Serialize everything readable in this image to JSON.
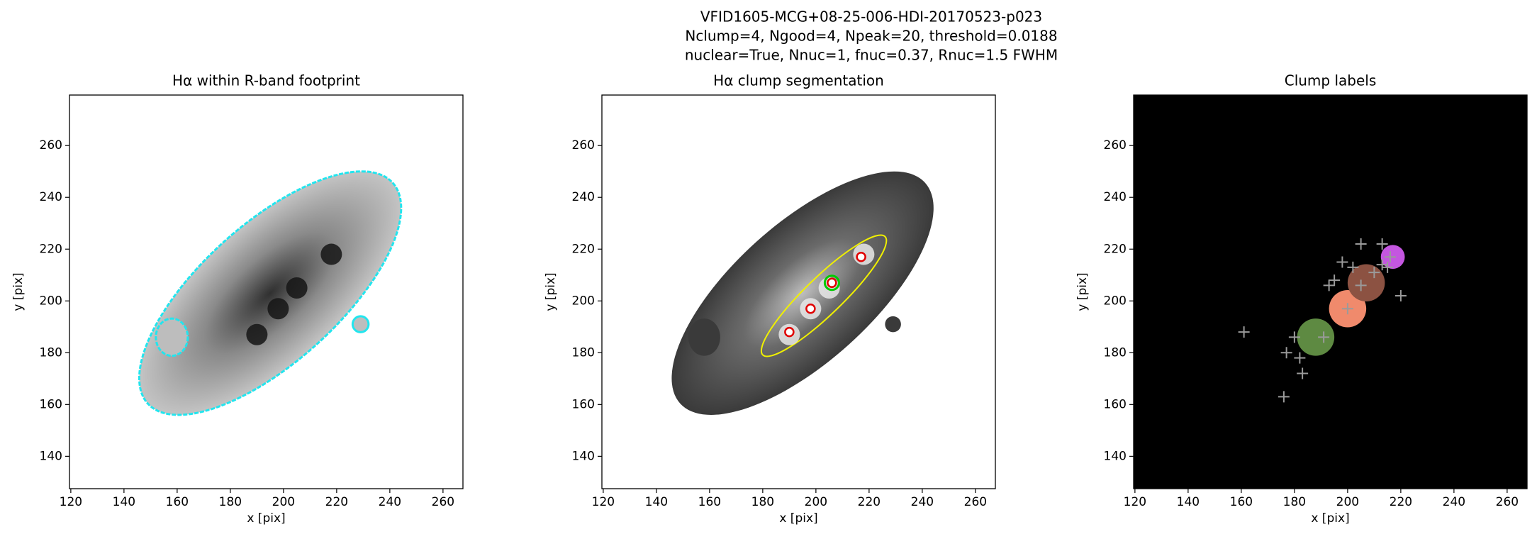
{
  "suptitle": [
    "VFID1605-MCG+08-25-006-HDI-20170523-p023",
    "Nclump=4, Ngood=4, Npeak=20, threshold=0.0188",
    "nuclear=True, Nnuc=1, fnuc=0.37, Rnuc=1.5 FWHM"
  ],
  "chart_data": [
    {
      "type": "image",
      "title": "Hα within R-band footprint",
      "xlabel": "x [pix]",
      "ylabel": "y [pix]",
      "xlim": [
        119.5,
        267.5
      ],
      "ylim": [
        127.5,
        279.5
      ],
      "xticks": [
        120,
        140,
        160,
        180,
        200,
        220,
        240,
        260
      ],
      "yticks": [
        140,
        160,
        180,
        200,
        220,
        240,
        260
      ],
      "background": "#ffffff",
      "contour_color": "#22e5ee"
    },
    {
      "type": "image",
      "title": "Hα clump segmentation",
      "xlabel": "x [pix]",
      "ylabel": "y [pix]",
      "xlim": [
        119.5,
        267.5
      ],
      "ylim": [
        127.5,
        279.5
      ],
      "xticks": [
        120,
        140,
        160,
        180,
        200,
        220,
        240,
        260
      ],
      "yticks": [
        140,
        160,
        180,
        200,
        220,
        240,
        260
      ],
      "background": "#ffffff",
      "contour_color": "#f0f000",
      "markers": {
        "x": [
          190,
          198,
          206,
          217
        ],
        "y": [
          188,
          197,
          207,
          217
        ],
        "color": "#e00000"
      },
      "nucleus": {
        "x": 206,
        "y": 207,
        "color": "#00cc00"
      }
    },
    {
      "type": "image",
      "title": "Clump labels",
      "xlabel": "x [pix]",
      "ylabel": "y [pix]",
      "xlim": [
        119.5,
        267.5
      ],
      "ylim": [
        127.5,
        279.5
      ],
      "xticks": [
        120,
        140,
        160,
        180,
        200,
        220,
        240,
        260
      ],
      "yticks": [
        140,
        160,
        180,
        200,
        220,
        240,
        260
      ],
      "background": "#000000",
      "clumps": {
        "x": [
          188,
          200,
          207,
          217
        ],
        "y": [
          186,
          197,
          207,
          217
        ],
        "colors": [
          "#5e8a42",
          "#f08a6c",
          "#8c5242",
          "#c456e0"
        ]
      },
      "peaks": {
        "x": [
          161,
          176,
          177,
          180,
          182,
          183,
          191,
          193,
          195,
          198,
          200,
          202,
          205,
          205,
          210,
          213,
          213,
          215,
          216,
          220
        ],
        "y": [
          188,
          163,
          180,
          186,
          178,
          172,
          186,
          206,
          208,
          215,
          197,
          213,
          222,
          206,
          211,
          214,
          222,
          213,
          217,
          202
        ],
        "color": "#9a9a9a"
      }
    }
  ]
}
